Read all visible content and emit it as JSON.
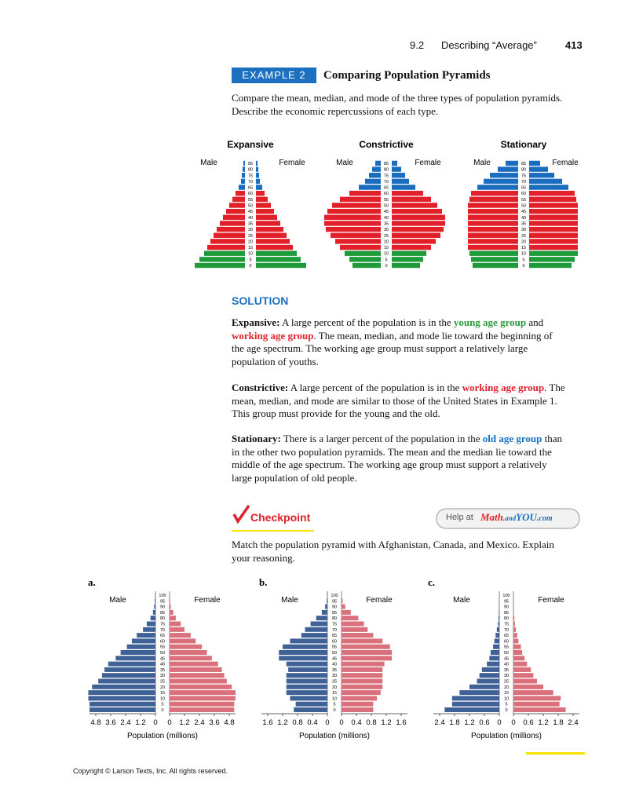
{
  "header": {
    "section": "9.2",
    "title": "Describing “Average”",
    "page": "413"
  },
  "example": {
    "label": "EXAMPLE 2",
    "title": "Comparing Population Pyramids",
    "prompt": "Compare the mean, median, and mode of the three types of population pyramids. Describe the economic repercussions of each type."
  },
  "solution": {
    "heading": "SOLUTION",
    "paragraphs": [
      {
        "lead": "Expansive:",
        "parts": [
          {
            "text": " A large percent of the population is in the "
          },
          {
            "text": "young age group",
            "color": "#2a9a3c"
          },
          {
            "text": " and "
          },
          {
            "text": "working age group",
            "color": "#e0202a"
          },
          {
            "text": ". The mean, median, and mode lie toward the beginning of the age spectrum. The working age group must support a relatively large population of youths."
          }
        ]
      },
      {
        "lead": "Constrictive:",
        "parts": [
          {
            "text": " A large percent of the population is in the "
          },
          {
            "text": "working age group",
            "color": "#e0202a"
          },
          {
            "text": ". The mean, median, and mode are similar to those of the United States in Example 1. This group must provide for the young and the old."
          }
        ]
      },
      {
        "lead": "Stationary:",
        "parts": [
          {
            "text": " There is a larger percent of the population in the "
          },
          {
            "text": "old age group",
            "color": "#1a6fc0"
          },
          {
            "text": " than in the other two population pyramids. The mean and the median lie toward the middle of the age spectrum. The working age group must support a relatively large population of old people."
          }
        ]
      }
    ]
  },
  "checkpoint": {
    "heading": "Checkpoint",
    "help_prefix": "Help at",
    "help_site": [
      "Math",
      ".and",
      "YOU",
      ".com"
    ],
    "prompt": "Match the population pyramid with Afghanistan, Canada, and Mexico. Explain your reasoning."
  },
  "chart_data": [
    {
      "type": "pyramid",
      "title": "Expansive",
      "categories": [
        "0",
        "5",
        "10",
        "15",
        "20",
        "25",
        "30",
        "35",
        "40",
        "45",
        "50",
        "55",
        "60",
        "65",
        "70",
        "75",
        "80",
        "85"
      ],
      "bar_colors": [
        "#1f9a3a",
        "#1f9a3a",
        "#1f9a3a",
        "#e2202a",
        "#e2202a",
        "#e2202a",
        "#e2202a",
        "#e2202a",
        "#e2202a",
        "#e2202a",
        "#e2202a",
        "#e2202a",
        "#e2202a",
        "#1a6cbf",
        "#1a6cbf",
        "#1a6cbf",
        "#1a6cbf",
        "#1a6cbf"
      ],
      "series": [
        {
          "name": "Male",
          "values": [
            64,
            58,
            52,
            48,
            44,
            40,
            36,
            32,
            28,
            24,
            20,
            16,
            12,
            8,
            5,
            4,
            3,
            2
          ]
        },
        {
          "name": "Female",
          "values": [
            64,
            57,
            52,
            47,
            43,
            39,
            35,
            31,
            27,
            23,
            19,
            15,
            11,
            8,
            5,
            4,
            3,
            2
          ]
        }
      ]
    },
    {
      "type": "pyramid",
      "title": "Constrictive",
      "categories": [
        "0",
        "5",
        "10",
        "15",
        "20",
        "25",
        "30",
        "35",
        "40",
        "45",
        "50",
        "55",
        "60",
        "65",
        "70",
        "75",
        "80",
        "85"
      ],
      "bar_colors": [
        "#1f9a3a",
        "#1f9a3a",
        "#1f9a3a",
        "#e2202a",
        "#e2202a",
        "#e2202a",
        "#e2202a",
        "#e2202a",
        "#e2202a",
        "#e2202a",
        "#e2202a",
        "#e2202a",
        "#e2202a",
        "#1a6cbf",
        "#1a6cbf",
        "#1a6cbf",
        "#1a6cbf",
        "#1a6cbf"
      ],
      "series": [
        {
          "name": "Male",
          "values": [
            36,
            40,
            46,
            52,
            58,
            64,
            70,
            72,
            72,
            68,
            62,
            52,
            40,
            28,
            20,
            15,
            11,
            7
          ]
        },
        {
          "name": "Female",
          "values": [
            36,
            40,
            44,
            50,
            56,
            62,
            66,
            68,
            68,
            64,
            58,
            50,
            40,
            30,
            22,
            17,
            12,
            7
          ]
        }
      ]
    },
    {
      "type": "pyramid",
      "title": "Stationary",
      "categories": [
        "0",
        "5",
        "10",
        "15",
        "20",
        "25",
        "30",
        "35",
        "40",
        "45",
        "50",
        "55",
        "60",
        "65",
        "70",
        "75",
        "80",
        "85"
      ],
      "bar_colors": [
        "#1f9a3a",
        "#1f9a3a",
        "#1f9a3a",
        "#e2202a",
        "#e2202a",
        "#e2202a",
        "#e2202a",
        "#e2202a",
        "#e2202a",
        "#e2202a",
        "#e2202a",
        "#e2202a",
        "#e2202a",
        "#1a6cbf",
        "#1a6cbf",
        "#1a6cbf",
        "#1a6cbf",
        "#1a6cbf"
      ],
      "series": [
        {
          "name": "Male",
          "values": [
            58,
            60,
            62,
            64,
            64,
            64,
            64,
            64,
            64,
            64,
            64,
            62,
            60,
            52,
            44,
            36,
            26,
            16
          ]
        },
        {
          "name": "Female",
          "values": [
            54,
            58,
            62,
            62,
            62,
            62,
            62,
            62,
            62,
            62,
            62,
            60,
            58,
            50,
            42,
            32,
            24,
            14
          ]
        }
      ]
    },
    {
      "type": "pyramid",
      "letter": "a.",
      "xlabel": "Population (millions)",
      "xlim": [
        0,
        4.8
      ],
      "xticks": [
        0,
        1.2,
        2.4,
        3.6,
        4.8
      ],
      "categories": [
        "0",
        "5",
        "10",
        "15",
        "20",
        "25",
        "30",
        "35",
        "40",
        "45",
        "50",
        "55",
        "60",
        "65",
        "70",
        "75",
        "80",
        "85",
        "90",
        "95",
        "100"
      ],
      "series": [
        {
          "name": "Male",
          "color": "#3f6196",
          "values": [
            5.3,
            5.3,
            5.4,
            5.4,
            5.1,
            4.6,
            4.3,
            4.1,
            3.8,
            3.2,
            2.8,
            2.3,
            1.9,
            1.5,
            1.0,
            0.7,
            0.4,
            0.2,
            0.1,
            0.05,
            0.02
          ]
        },
        {
          "name": "Female",
          "color": "#d9707b",
          "values": [
            5.2,
            5.2,
            5.3,
            5.3,
            5.0,
            4.6,
            4.4,
            4.2,
            3.9,
            3.4,
            3.0,
            2.6,
            2.1,
            1.7,
            1.2,
            0.9,
            0.5,
            0.3,
            0.1,
            0.05,
            0.02
          ]
        }
      ]
    },
    {
      "type": "pyramid",
      "letter": "b.",
      "xlabel": "Population (millions)",
      "xlim": [
        0,
        1.6
      ],
      "xticks": [
        0,
        0.4,
        0.8,
        1.2,
        1.6
      ],
      "categories": [
        "0",
        "5",
        "10",
        "15",
        "20",
        "25",
        "30",
        "35",
        "40",
        "45",
        "50",
        "55",
        "60",
        "65",
        "70",
        "75",
        "80",
        "85",
        "90",
        "95",
        "100"
      ],
      "series": [
        {
          "name": "Male",
          "color": "#3f6196",
          "values": [
            0.9,
            0.85,
            1.0,
            1.1,
            1.1,
            1.1,
            1.1,
            1.05,
            1.1,
            1.3,
            1.3,
            1.2,
            1.0,
            0.7,
            0.6,
            0.45,
            0.3,
            0.15,
            0.06,
            0.02,
            0.01
          ]
        },
        {
          "name": "Female",
          "color": "#d9707b",
          "values": [
            0.85,
            0.85,
            0.95,
            1.05,
            1.1,
            1.1,
            1.1,
            1.1,
            1.15,
            1.35,
            1.35,
            1.3,
            1.1,
            0.85,
            0.7,
            0.6,
            0.45,
            0.25,
            0.1,
            0.03,
            0.01
          ]
        }
      ]
    },
    {
      "type": "pyramid",
      "letter": "c.",
      "xlabel": "Population (millions)",
      "xlim": [
        0,
        2.4
      ],
      "xticks": [
        0,
        0.6,
        1.2,
        1.8,
        2.4
      ],
      "categories": [
        "0",
        "5",
        "10",
        "15",
        "20",
        "25",
        "30",
        "35",
        "40",
        "45",
        "50",
        "55",
        "60",
        "65",
        "70",
        "75",
        "80",
        "85",
        "90",
        "95",
        "100"
      ],
      "series": [
        {
          "name": "Male",
          "color": "#3f6196",
          "values": [
            2.2,
            1.9,
            1.9,
            1.6,
            1.2,
            0.9,
            0.8,
            0.7,
            0.5,
            0.4,
            0.35,
            0.25,
            0.2,
            0.15,
            0.1,
            0.05,
            0.03,
            0.02,
            0.01,
            0.005,
            0
          ]
        },
        {
          "name": "Female",
          "color": "#d9707b",
          "values": [
            2.1,
            1.85,
            1.9,
            1.6,
            1.2,
            0.95,
            0.8,
            0.7,
            0.55,
            0.45,
            0.35,
            0.3,
            0.2,
            0.15,
            0.1,
            0.06,
            0.04,
            0.02,
            0.01,
            0.005,
            0
          ]
        }
      ]
    }
  ],
  "footer": {
    "copyright": "Copyright © Larson Texts, Inc. All rights reserved."
  }
}
